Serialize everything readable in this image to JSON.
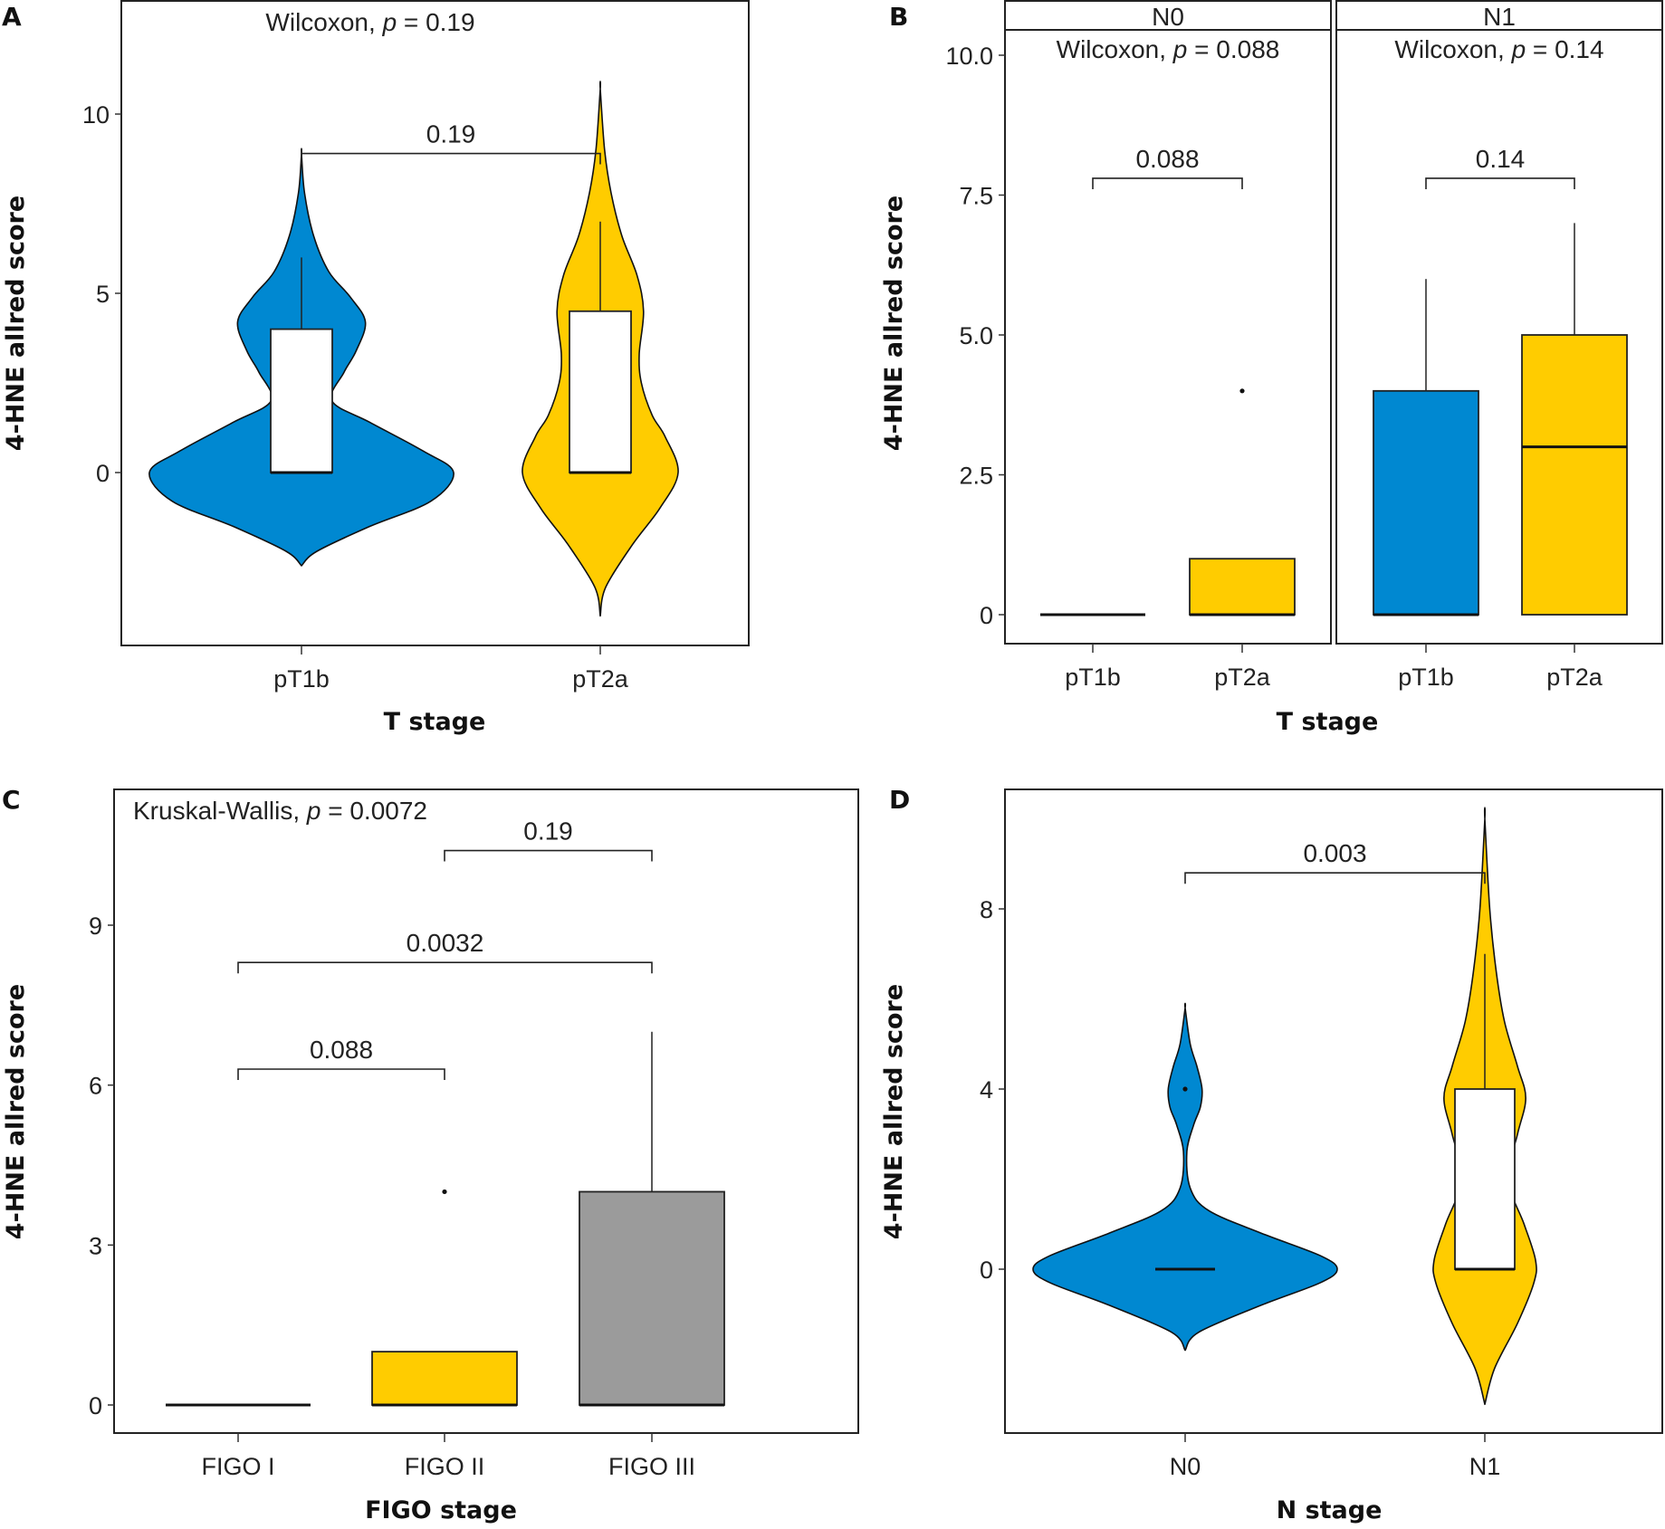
{
  "colors": {
    "blue": "#0088D1",
    "yellow": "#FFCC00",
    "grey": "#9B9B9B",
    "white": "#FFFFFF"
  },
  "chart_data": [
    {
      "panel": "A",
      "type": "violin",
      "title": "",
      "annotation": {
        "prefix": "Wilcoxon, ",
        "p_symbol": "p",
        "suffix": " = 0.19"
      },
      "xlabel": "T stage",
      "ylabel": "4-HNE allred score",
      "ylim": [
        -4.6,
        13.1
      ],
      "yticks": [
        0,
        5,
        10
      ],
      "ytick_labels": [
        "0",
        "5",
        "10"
      ],
      "categories": [
        "pT1b",
        "pT2a"
      ],
      "fill": [
        "blue",
        "yellow"
      ],
      "violins": [
        {
          "min": -2.6,
          "max": 8.9,
          "profile": [
            [
              -2.6,
              0
            ],
            [
              -2.2,
              0.1
            ],
            [
              -1.5,
              0.45
            ],
            [
              -0.8,
              0.85
            ],
            [
              0,
              1.0
            ],
            [
              0.6,
              0.8
            ],
            [
              1.4,
              0.45
            ],
            [
              2,
              0.2
            ],
            [
              2.8,
              0.28
            ],
            [
              3.4,
              0.36
            ],
            [
              4.2,
              0.42
            ],
            [
              4.9,
              0.32
            ],
            [
              5.6,
              0.18
            ],
            [
              6.6,
              0.08
            ],
            [
              7.8,
              0.02
            ],
            [
              8.9,
              0
            ]
          ]
        },
        {
          "min": -4.0,
          "max": 10.7,
          "profile": [
            [
              -4.0,
              0
            ],
            [
              -3.2,
              0.05
            ],
            [
              -2,
              0.3
            ],
            [
              -1,
              0.55
            ],
            [
              0,
              0.72
            ],
            [
              1,
              0.6
            ],
            [
              1.6,
              0.48
            ],
            [
              2.5,
              0.38
            ],
            [
              3.3,
              0.36
            ],
            [
              4.5,
              0.4
            ],
            [
              5.5,
              0.34
            ],
            [
              6.6,
              0.2
            ],
            [
              7.8,
              0.1
            ],
            [
              9,
              0.04
            ],
            [
              10.7,
              0
            ]
          ]
        }
      ],
      "boxes": [
        {
          "q1": 0,
          "median": 0,
          "q3": 4,
          "whisker_low": 0,
          "whisker_high": 6
        },
        {
          "q1": 0,
          "median": 0,
          "q3": 4.5,
          "whisker_low": 0,
          "whisker_high": 7
        }
      ],
      "brackets": [
        {
          "from": 0,
          "to": 1,
          "y": 8.9,
          "label": "0.19"
        }
      ]
    },
    {
      "panel": "B",
      "type": "box",
      "xlabel": "T stage",
      "ylabel": "4-HNE allred score",
      "ylim": [
        -0.5,
        10.4
      ],
      "yticks": [
        0,
        2.5,
        5,
        7.5,
        10
      ],
      "ytick_labels": [
        "0",
        "2.5",
        "5.0",
        "7.5",
        "10.0"
      ],
      "facets": [
        {
          "strip": "N0",
          "annotation": {
            "prefix": "Wilcoxon, ",
            "p_symbol": "p",
            "suffix": " = 0.088"
          },
          "categories": [
            "pT1b",
            "pT2a"
          ],
          "fill": [
            "blue",
            "yellow"
          ],
          "boxes": [
            {
              "q1": 0,
              "median": 0,
              "q3": 0,
              "whisker_low": 0,
              "whisker_high": 0,
              "outliers": []
            },
            {
              "q1": 0,
              "median": 0,
              "q3": 1,
              "whisker_low": 0,
              "whisker_high": 1,
              "outliers": [
                4
              ]
            }
          ],
          "brackets": [
            {
              "from": 0,
              "to": 1,
              "y": 7.8,
              "label": "0.088"
            }
          ]
        },
        {
          "strip": "N1",
          "annotation": {
            "prefix": "Wilcoxon, ",
            "p_symbol": "p",
            "suffix": " = 0.14"
          },
          "categories": [
            "pT1b",
            "pT2a"
          ],
          "fill": [
            "blue",
            "yellow"
          ],
          "boxes": [
            {
              "q1": 0,
              "median": 0,
              "q3": 4,
              "whisker_low": 0,
              "whisker_high": 6,
              "outliers": []
            },
            {
              "q1": 0,
              "median": 3,
              "q3": 5,
              "whisker_low": 0,
              "whisker_high": 7,
              "outliers": []
            }
          ],
          "brackets": [
            {
              "from": 0,
              "to": 1,
              "y": 7.8,
              "label": "0.14"
            }
          ]
        }
      ]
    },
    {
      "panel": "C",
      "type": "box",
      "annotation": {
        "prefix": "Kruskal-Wallis, ",
        "p_symbol": "p",
        "suffix": " = 0.0072"
      },
      "xlabel": "FIGO stage",
      "ylabel": "4-HNE allred score",
      "ylim": [
        -0.5,
        11.5
      ],
      "yticks": [
        0,
        3,
        6,
        9
      ],
      "ytick_labels": [
        "0",
        "3",
        "6",
        "9"
      ],
      "categories": [
        "FIGO I",
        "FIGO II",
        "FIGO III"
      ],
      "fill": [
        "blue",
        "yellow",
        "grey"
      ],
      "boxes": [
        {
          "q1": 0,
          "median": 0,
          "q3": 0,
          "whisker_low": 0,
          "whisker_high": 0,
          "outliers": []
        },
        {
          "q1": 0,
          "median": 0,
          "q3": 1,
          "whisker_low": 0,
          "whisker_high": 1,
          "outliers": [
            4
          ]
        },
        {
          "q1": 0,
          "median": 0,
          "q3": 4,
          "whisker_low": 0,
          "whisker_high": 7,
          "outliers": []
        }
      ],
      "brackets": [
        {
          "from": 1,
          "to": 2,
          "y": 10.4,
          "label": "0.19"
        },
        {
          "from": 0,
          "to": 2,
          "y": 8.3,
          "label": "0.0032"
        },
        {
          "from": 0,
          "to": 1,
          "y": 6.3,
          "label": "0.088"
        }
      ]
    },
    {
      "panel": "D",
      "type": "violin",
      "xlabel": "N stage",
      "ylabel": "4-HNE allred score",
      "ylim": [
        -3.6,
        10.7
      ],
      "yticks": [
        0,
        4,
        8
      ],
      "ytick_labels": [
        "0",
        "4",
        "8"
      ],
      "categories": [
        "N0",
        "N1"
      ],
      "fill": [
        "blue",
        "yellow"
      ],
      "violins": [
        {
          "min": -1.8,
          "max": 5.8,
          "profile": [
            [
              -1.8,
              0
            ],
            [
              -1.4,
              0.08
            ],
            [
              -0.8,
              0.45
            ],
            [
              -0.3,
              0.8
            ],
            [
              0,
              0.9
            ],
            [
              0.3,
              0.8
            ],
            [
              0.8,
              0.45
            ],
            [
              1.3,
              0.14
            ],
            [
              1.8,
              0.03
            ],
            [
              2.6,
              0.01
            ],
            [
              3.2,
              0.05
            ],
            [
              3.6,
              0.09
            ],
            [
              4,
              0.1
            ],
            [
              4.5,
              0.07
            ],
            [
              5,
              0.03
            ],
            [
              5.8,
              0
            ]
          ]
        },
        {
          "min": -3.0,
          "max": 10.0,
          "profile": [
            [
              -3.0,
              0
            ],
            [
              -2.2,
              0.06
            ],
            [
              -1.2,
              0.2
            ],
            [
              -0.3,
              0.3
            ],
            [
              0.2,
              0.31
            ],
            [
              1,
              0.24
            ],
            [
              2,
              0.14
            ],
            [
              3,
              0.2
            ],
            [
              3.8,
              0.25
            ],
            [
              4.5,
              0.2
            ],
            [
              5.5,
              0.12
            ],
            [
              6.6,
              0.07
            ],
            [
              8,
              0.03
            ],
            [
              10,
              0
            ]
          ]
        }
      ],
      "boxes": [
        {
          "q1": 0,
          "median": 0,
          "q3": 0,
          "whisker_low": 0,
          "whisker_high": 0,
          "outliers": [
            4
          ]
        },
        {
          "q1": 0,
          "median": 0,
          "q3": 4,
          "whisker_low": 0,
          "whisker_high": 7,
          "outliers": []
        }
      ],
      "brackets": [
        {
          "from": 0,
          "to": 1,
          "y": 8.8,
          "label": "0.003"
        }
      ]
    }
  ]
}
